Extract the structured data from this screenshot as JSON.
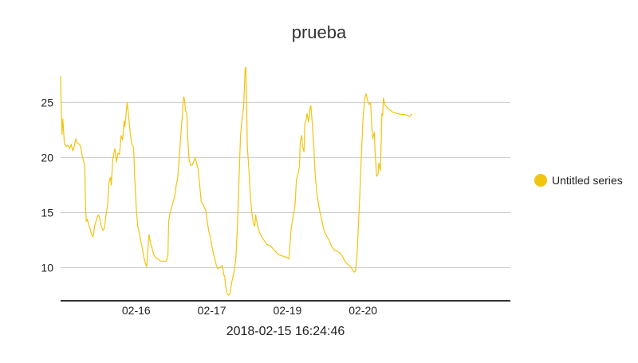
{
  "chart_data": {
    "type": "line",
    "title": "prueba",
    "xlabel": "2018-02-15 16:24:46",
    "ylabel": "",
    "ylim": [
      7,
      28.5
    ],
    "xlim": [
      0,
      5.95
    ],
    "yticks": [
      10,
      15,
      20,
      25
    ],
    "xticks": [
      {
        "label": "02-16",
        "x": 1.0
      },
      {
        "label": "02-17",
        "x": 2.0
      },
      {
        "label": "02-19",
        "x": 3.0
      },
      {
        "label": "02-20",
        "x": 4.0
      }
    ],
    "grid": true,
    "legend_position": "right",
    "series": [
      {
        "name": "Untitled series",
        "color": "#f1c40f",
        "points": [
          [
            0.0,
            27.4
          ],
          [
            0.01,
            24.0
          ],
          [
            0.02,
            22.1
          ],
          [
            0.03,
            23.5
          ],
          [
            0.04,
            22.3
          ],
          [
            0.05,
            21.3
          ],
          [
            0.07,
            21.0
          ],
          [
            0.1,
            21.1
          ],
          [
            0.12,
            20.8
          ],
          [
            0.14,
            21.2
          ],
          [
            0.16,
            20.6
          ],
          [
            0.18,
            21.0
          ],
          [
            0.2,
            21.7
          ],
          [
            0.22,
            21.3
          ],
          [
            0.25,
            21.2
          ],
          [
            0.27,
            20.8
          ],
          [
            0.29,
            20.0
          ],
          [
            0.31,
            19.5
          ],
          [
            0.32,
            19.2
          ],
          [
            0.33,
            15.5
          ],
          [
            0.34,
            14.2
          ],
          [
            0.35,
            14.4
          ],
          [
            0.37,
            14.0
          ],
          [
            0.39,
            13.5
          ],
          [
            0.41,
            13.0
          ],
          [
            0.43,
            12.8
          ],
          [
            0.45,
            13.8
          ],
          [
            0.48,
            14.5
          ],
          [
            0.5,
            14.8
          ],
          [
            0.52,
            14.4
          ],
          [
            0.54,
            13.7
          ],
          [
            0.56,
            13.4
          ],
          [
            0.58,
            13.6
          ],
          [
            0.6,
            14.8
          ],
          [
            0.62,
            15.6
          ],
          [
            0.64,
            17.8
          ],
          [
            0.66,
            18.2
          ],
          [
            0.67,
            17.5
          ],
          [
            0.69,
            19.8
          ],
          [
            0.71,
            20.6
          ],
          [
            0.72,
            20.8
          ],
          [
            0.74,
            19.6
          ],
          [
            0.76,
            20.4
          ],
          [
            0.78,
            20.3
          ],
          [
            0.8,
            22.0
          ],
          [
            0.82,
            21.6
          ],
          [
            0.84,
            23.3
          ],
          [
            0.85,
            22.8
          ],
          [
            0.87,
            24.3
          ],
          [
            0.88,
            25.0
          ],
          [
            0.9,
            23.8
          ],
          [
            0.92,
            22.3
          ],
          [
            0.94,
            21.2
          ],
          [
            0.96,
            21.0
          ],
          [
            0.97,
            20.3
          ],
          [
            0.98,
            18.2
          ],
          [
            1.0,
            15.5
          ],
          [
            1.02,
            13.8
          ],
          [
            1.05,
            12.8
          ],
          [
            1.08,
            11.8
          ],
          [
            1.1,
            11.0
          ],
          [
            1.12,
            10.4
          ],
          [
            1.14,
            10.1
          ],
          [
            1.15,
            11.4
          ],
          [
            1.17,
            13.0
          ],
          [
            1.19,
            12.2
          ],
          [
            1.21,
            11.8
          ],
          [
            1.23,
            11.2
          ],
          [
            1.26,
            10.9
          ],
          [
            1.29,
            10.8
          ],
          [
            1.32,
            10.6
          ],
          [
            1.36,
            10.6
          ],
          [
            1.4,
            10.6
          ],
          [
            1.42,
            11.2
          ],
          [
            1.43,
            14.2
          ],
          [
            1.45,
            15.0
          ],
          [
            1.47,
            15.5
          ],
          [
            1.49,
            16.0
          ],
          [
            1.51,
            16.5
          ],
          [
            1.53,
            17.5
          ],
          [
            1.55,
            18.2
          ],
          [
            1.57,
            20.0
          ],
          [
            1.59,
            22.0
          ],
          [
            1.61,
            23.8
          ],
          [
            1.62,
            25.0
          ],
          [
            1.63,
            25.5
          ],
          [
            1.64,
            25.2
          ],
          [
            1.65,
            24.3
          ],
          [
            1.67,
            24.0
          ],
          [
            1.68,
            22.0
          ],
          [
            1.7,
            19.8
          ],
          [
            1.72,
            19.3
          ],
          [
            1.74,
            19.3
          ],
          [
            1.76,
            19.6
          ],
          [
            1.78,
            20.0
          ],
          [
            1.8,
            19.5
          ],
          [
            1.82,
            18.9
          ],
          [
            1.84,
            17.5
          ],
          [
            1.86,
            16.0
          ],
          [
            1.88,
            15.8
          ],
          [
            1.9,
            15.5
          ],
          [
            1.92,
            15.2
          ],
          [
            1.94,
            14.2
          ],
          [
            1.96,
            13.3
          ],
          [
            1.98,
            12.8
          ],
          [
            2.0,
            12.0
          ],
          [
            2.02,
            11.3
          ],
          [
            2.04,
            10.8
          ],
          [
            2.06,
            10.2
          ],
          [
            2.08,
            9.9
          ],
          [
            2.1,
            10.0
          ],
          [
            2.12,
            10.1
          ],
          [
            2.14,
            10.2
          ],
          [
            2.16,
            9.3
          ],
          [
            2.17,
            9.3
          ],
          [
            2.18,
            8.5
          ],
          [
            2.2,
            7.7
          ],
          [
            2.22,
            7.5
          ],
          [
            2.24,
            7.6
          ],
          [
            2.26,
            8.5
          ],
          [
            2.28,
            9.2
          ],
          [
            2.3,
            9.8
          ],
          [
            2.32,
            11.0
          ],
          [
            2.34,
            14.0
          ],
          [
            2.36,
            18.0
          ],
          [
            2.38,
            22.0
          ],
          [
            2.4,
            23.5
          ],
          [
            2.42,
            24.5
          ],
          [
            2.43,
            26.0
          ],
          [
            2.44,
            28.0
          ],
          [
            2.45,
            28.2
          ],
          [
            2.46,
            25.0
          ],
          [
            2.47,
            21.0
          ],
          [
            2.49,
            19.0
          ],
          [
            2.51,
            16.5
          ],
          [
            2.53,
            15.0
          ],
          [
            2.55,
            14.0
          ],
          [
            2.57,
            13.8
          ],
          [
            2.58,
            14.8
          ],
          [
            2.6,
            14.0
          ],
          [
            2.63,
            13.2
          ],
          [
            2.66,
            12.8
          ],
          [
            2.7,
            12.4
          ],
          [
            2.73,
            12.1
          ],
          [
            2.77,
            12.0
          ],
          [
            2.8,
            11.8
          ],
          [
            2.84,
            11.5
          ],
          [
            2.88,
            11.2
          ],
          [
            2.92,
            11.1
          ],
          [
            2.96,
            11.0
          ],
          [
            3.0,
            10.9
          ],
          [
            3.02,
            10.8
          ],
          [
            3.03,
            11.6
          ],
          [
            3.05,
            13.5
          ],
          [
            3.06,
            14.0
          ],
          [
            3.08,
            14.9
          ],
          [
            3.1,
            15.5
          ],
          [
            3.12,
            18.0
          ],
          [
            3.14,
            18.5
          ],
          [
            3.16,
            19.2
          ],
          [
            3.17,
            21.5
          ],
          [
            3.19,
            22.0
          ],
          [
            3.2,
            21.0
          ],
          [
            3.22,
            20.5
          ],
          [
            3.23,
            23.0
          ],
          [
            3.25,
            23.5
          ],
          [
            3.26,
            24.0
          ],
          [
            3.28,
            23.2
          ],
          [
            3.3,
            24.5
          ],
          [
            3.31,
            24.7
          ],
          [
            3.33,
            23.0
          ],
          [
            3.35,
            21.0
          ],
          [
            3.37,
            18.2
          ],
          [
            3.39,
            16.8
          ],
          [
            3.42,
            15.4
          ],
          [
            3.45,
            14.5
          ],
          [
            3.48,
            13.5
          ],
          [
            3.51,
            13.0
          ],
          [
            3.55,
            12.5
          ],
          [
            3.58,
            12.0
          ],
          [
            3.62,
            11.6
          ],
          [
            3.66,
            11.5
          ],
          [
            3.7,
            11.3
          ],
          [
            3.73,
            11.0
          ],
          [
            3.76,
            10.6
          ],
          [
            3.8,
            10.3
          ],
          [
            3.84,
            10.1
          ],
          [
            3.86,
            9.8
          ],
          [
            3.88,
            9.6
          ],
          [
            3.9,
            9.7
          ],
          [
            3.92,
            11.0
          ],
          [
            3.94,
            14.0
          ],
          [
            3.96,
            17.0
          ],
          [
            3.98,
            20.5
          ],
          [
            4.0,
            23.5
          ],
          [
            4.02,
            25.2
          ],
          [
            4.04,
            25.8
          ],
          [
            4.06,
            25.2
          ],
          [
            4.08,
            24.8
          ],
          [
            4.1,
            25.0
          ],
          [
            4.12,
            22.5
          ],
          [
            4.13,
            21.7
          ],
          [
            4.15,
            22.3
          ],
          [
            4.16,
            20.5
          ],
          [
            4.18,
            18.3
          ],
          [
            4.2,
            18.5
          ],
          [
            4.21,
            19.5
          ],
          [
            4.23,
            18.8
          ],
          [
            4.25,
            24.0
          ],
          [
            4.26,
            23.8
          ],
          [
            4.27,
            25.4
          ],
          [
            4.29,
            24.8
          ],
          [
            4.32,
            24.5
          ],
          [
            4.36,
            24.3
          ],
          [
            4.4,
            24.1
          ],
          [
            4.45,
            24.0
          ],
          [
            4.5,
            23.9
          ],
          [
            4.55,
            23.9
          ],
          [
            4.6,
            23.8
          ],
          [
            4.62,
            23.7
          ],
          [
            4.64,
            23.9
          ],
          [
            4.65,
            23.9
          ]
        ]
      }
    ]
  }
}
